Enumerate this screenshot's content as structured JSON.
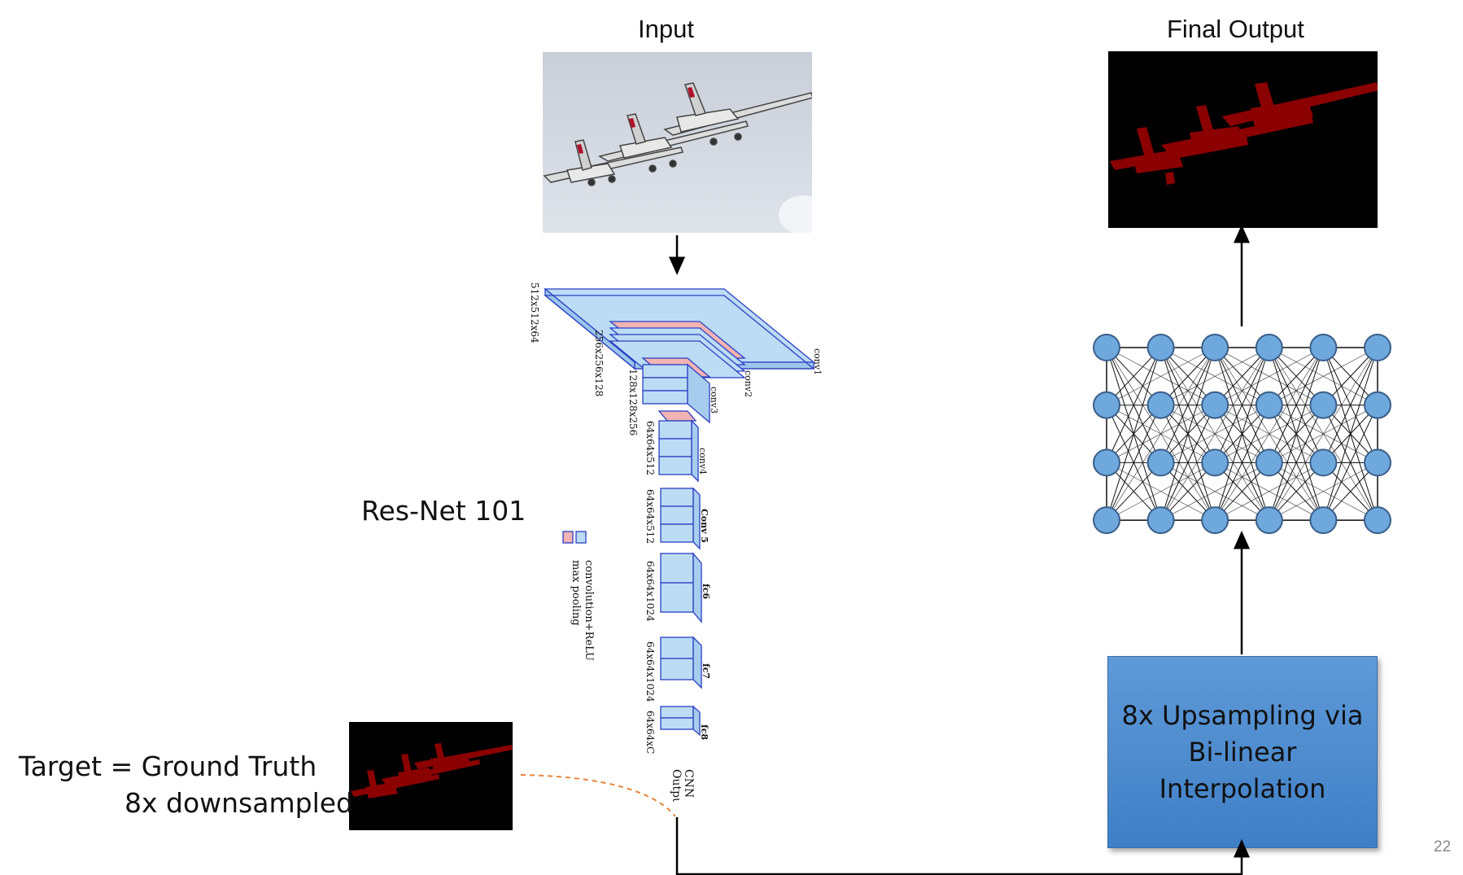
{
  "input_title": "Input",
  "output_title": "Final Output",
  "resnet_label": "Res-Net 101",
  "target_line1": "Target = Ground Truth",
  "target_line2": "8x downsampled",
  "upsample_lines": [
    "8x Upsampling via",
    "Bi-linear",
    "Interpolation"
  ],
  "page_number": "22",
  "cnn_output_label": "CNN\nOutput",
  "legend": {
    "conv": "convolution+ReLU",
    "pool": "max pooling"
  },
  "layer_dims": [
    "512x512x64",
    "256x256x128",
    "128x128x256",
    "64x64x512",
    "64x64x512",
    "64x64x1024",
    "64x64x1024",
    "64x64xC"
  ],
  "layer_names": [
    "conv1",
    "conv2",
    "conv3",
    "conv4",
    "Conv 5",
    "fc6",
    "fc7",
    "fc8"
  ],
  "colors": {
    "mask_red": "#8b0000",
    "conv_blue": "#bcdcf5",
    "pool_red": "#f2b3b3",
    "node_blue": "#6fa8dc",
    "dashed_orange": "#e8843a",
    "box_blue": "#4a88cc"
  }
}
